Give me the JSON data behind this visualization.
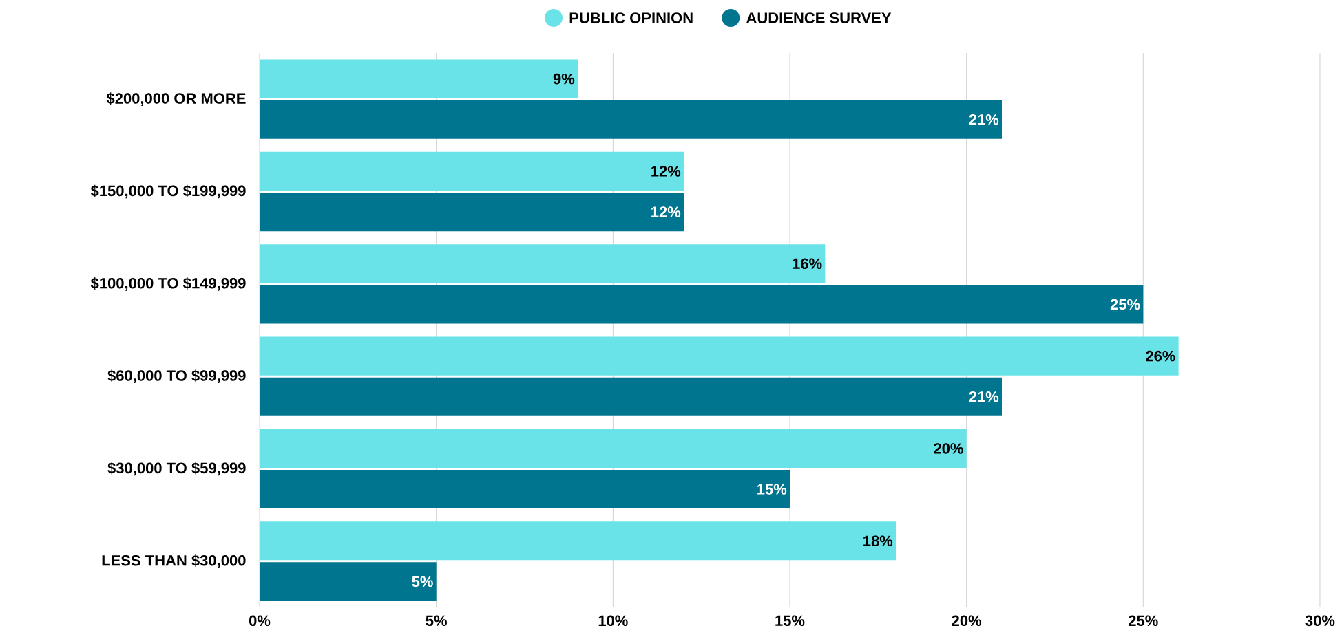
{
  "chart_data": {
    "type": "bar",
    "orientation": "horizontal",
    "categories": [
      "$200,000 OR MORE",
      "$150,000 TO $199,999",
      "$100,000 TO $149,999",
      "$60,000 TO $99,999",
      "$30,000 TO $59,999",
      "LESS THAN $30,000"
    ],
    "series": [
      {
        "name": "PUBLIC OPINION",
        "color": "#6ae3e8",
        "values": [
          9,
          12,
          16,
          26,
          20,
          18
        ],
        "value_labels": [
          "9%",
          "12%",
          "16%",
          "26%",
          "20%",
          "18%"
        ]
      },
      {
        "name": "AUDIENCE SURVEY",
        "color": "#00758f",
        "values": [
          21,
          12,
          25,
          21,
          15,
          5
        ],
        "value_labels": [
          "21%",
          "12%",
          "25%",
          "21%",
          "15%",
          "5%"
        ]
      }
    ],
    "xlim": [
      0,
      30
    ],
    "xticks": [
      {
        "value": 0,
        "label": "0%"
      },
      {
        "value": 5,
        "label": "5%"
      },
      {
        "value": 10,
        "label": "10%"
      },
      {
        "value": 15,
        "label": "15%"
      },
      {
        "value": 20,
        "label": "20%"
      },
      {
        "value": 25,
        "label": "25%"
      },
      {
        "value": 30,
        "label": "30%"
      }
    ],
    "grid": "x",
    "legend": "top"
  }
}
